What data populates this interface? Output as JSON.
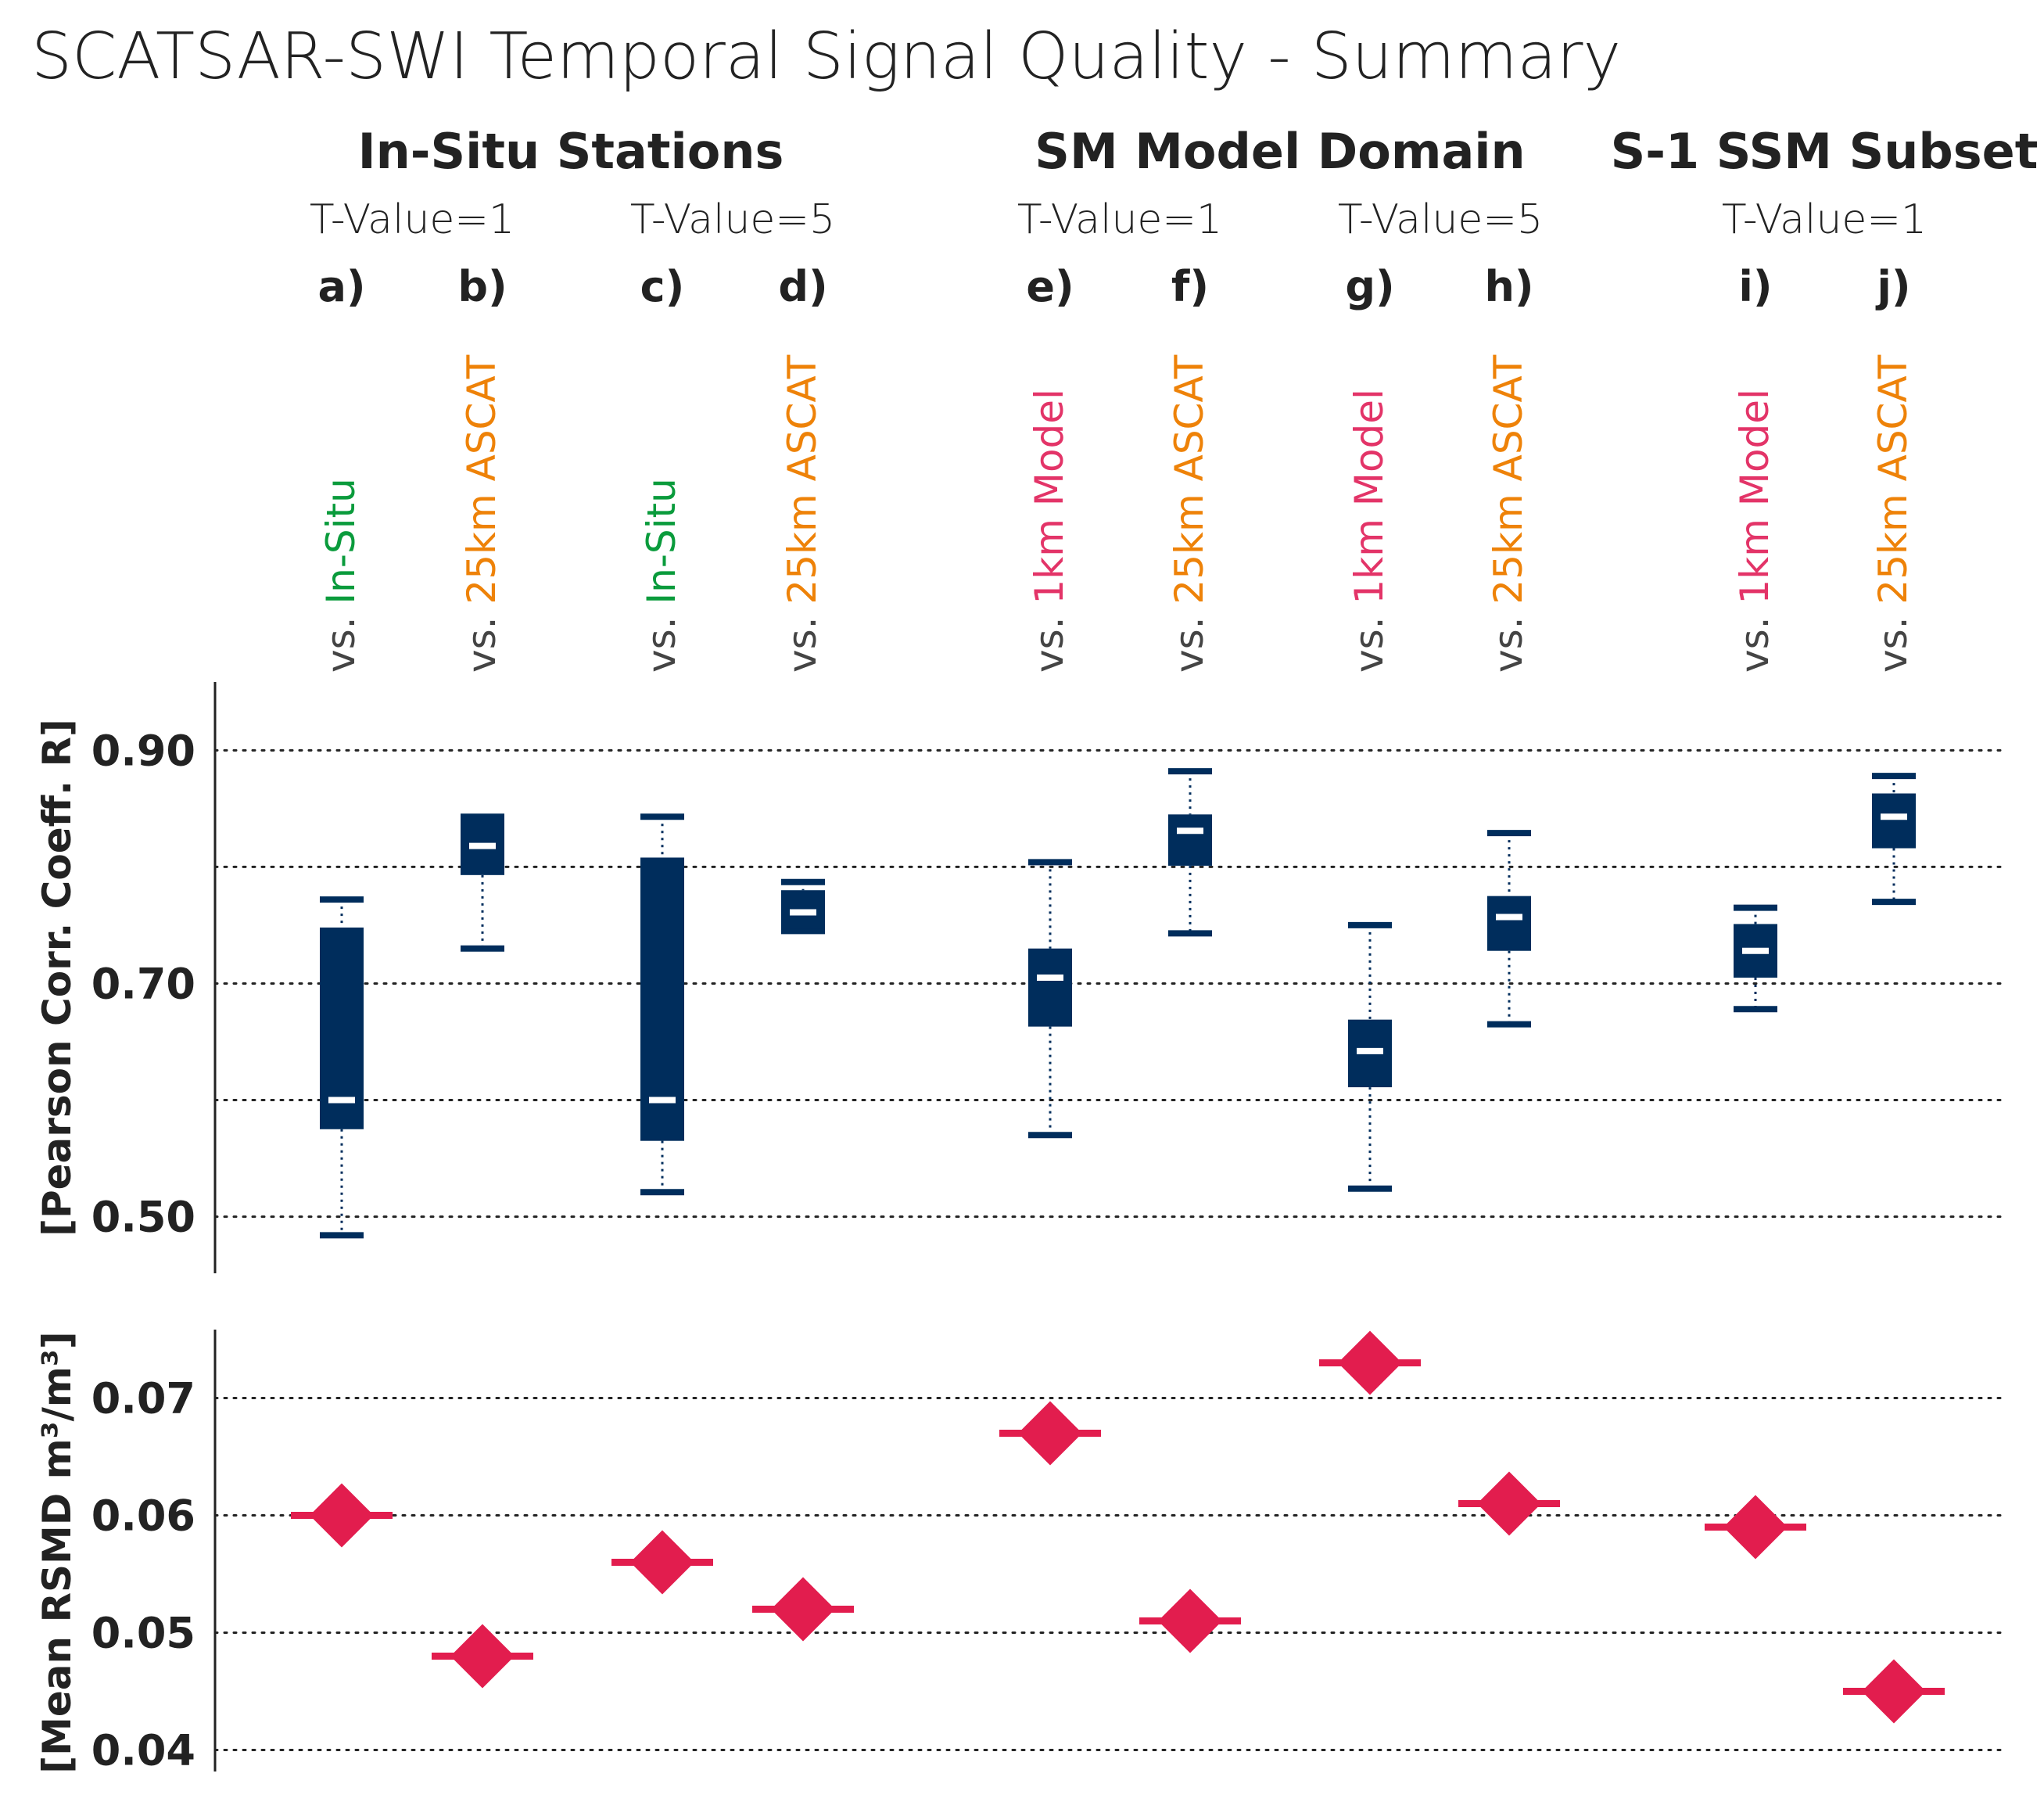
{
  "title": "SCATSAR-SWI Temporal Signal Quality - Summary",
  "groups": [
    {
      "label": "In-Situ Stations",
      "tvalues": [
        "T-Value=1",
        "T-Value=5"
      ]
    },
    {
      "label": "SM Model Domain",
      "tvalues": [
        "T-Value=1",
        "T-Value=5"
      ]
    },
    {
      "label": "S-1 SSM Subset",
      "tvalues": [
        "T-Value=1"
      ]
    }
  ],
  "colors": {
    "box": "#002d5c",
    "median": "#ffffff",
    "diamond": "#e21d4e",
    "insitu": "#0a9b3c",
    "ascat": "#ee8208",
    "model": "#e33468",
    "vs": "#444444",
    "grid": "#222222",
    "text": "#222222"
  },
  "chart_data": [
    {
      "type": "box",
      "ylabel": "[Pearson Corr. Coeff. R]",
      "ylim": [
        0.44,
        0.97
      ],
      "yticks": [
        0.5,
        0.7,
        0.9
      ],
      "yticklabels": [
        "0.50",
        "0.70",
        "0.90"
      ],
      "gridlines": [
        0.5,
        0.6,
        0.7,
        0.8,
        0.9
      ],
      "grid": true,
      "categories": [
        {
          "letter": "a)",
          "vs": "vs.",
          "target": "In-Situ",
          "kind": "insitu"
        },
        {
          "letter": "b)",
          "vs": "vs.",
          "target": "25km ASCAT",
          "kind": "ascat"
        },
        {
          "letter": "c)",
          "vs": "vs.",
          "target": "In-Situ",
          "kind": "insitu"
        },
        {
          "letter": "d)",
          "vs": "vs.",
          "target": "25km ASCAT",
          "kind": "ascat"
        },
        {
          "letter": "e)",
          "vs": "vs.",
          "target": "1km Model",
          "kind": "model"
        },
        {
          "letter": "f)",
          "vs": "vs.",
          "target": "25km ASCAT",
          "kind": "ascat"
        },
        {
          "letter": "g)",
          "vs": "vs.",
          "target": "1km Model",
          "kind": "model"
        },
        {
          "letter": "h)",
          "vs": "vs.",
          "target": "25km ASCAT",
          "kind": "ascat"
        },
        {
          "letter": "i)",
          "vs": "vs.",
          "target": "1km Model",
          "kind": "model"
        },
        {
          "letter": "j)",
          "vs": "vs.",
          "target": "25km ASCAT",
          "kind": "ascat"
        }
      ],
      "boxes": [
        {
          "min": 0.484,
          "q1": 0.575,
          "median": 0.6,
          "q3": 0.748,
          "max": 0.772
        },
        {
          "min": 0.73,
          "q1": 0.793,
          "median": 0.818,
          "q3": 0.843,
          "max": 0.843
        },
        {
          "min": 0.521,
          "q1": 0.565,
          "median": 0.6,
          "q3": 0.808,
          "max": 0.843
        },
        {
          "min": 0.745,
          "q1": 0.747,
          "median": 0.761,
          "q3": 0.78,
          "max": 0.787
        },
        {
          "min": 0.57,
          "q1": 0.663,
          "median": 0.705,
          "q3": 0.73,
          "max": 0.804
        },
        {
          "min": 0.743,
          "q1": 0.801,
          "median": 0.831,
          "q3": 0.845,
          "max": 0.882
        },
        {
          "min": 0.524,
          "q1": 0.611,
          "median": 0.642,
          "q3": 0.669,
          "max": 0.75
        },
        {
          "min": 0.665,
          "q1": 0.728,
          "median": 0.757,
          "q3": 0.775,
          "max": 0.829
        },
        {
          "min": 0.678,
          "q1": 0.705,
          "median": 0.728,
          "q3": 0.751,
          "max": 0.765
        },
        {
          "min": 0.77,
          "q1": 0.816,
          "median": 0.843,
          "q3": 0.863,
          "max": 0.878
        }
      ]
    },
    {
      "type": "scatter",
      "marker": "diamond",
      "ylabel": "[Mean RSMD m³/m³]",
      "ylim": [
        0.0365,
        0.0765
      ],
      "yticks": [
        0.04,
        0.05,
        0.06,
        0.07
      ],
      "yticklabels": [
        "0.04",
        "0.05",
        "0.06",
        "0.07"
      ],
      "grid": true,
      "values": [
        0.06,
        0.048,
        0.056,
        0.052,
        0.067,
        0.051,
        0.073,
        0.061,
        0.059,
        0.045
      ]
    }
  ]
}
